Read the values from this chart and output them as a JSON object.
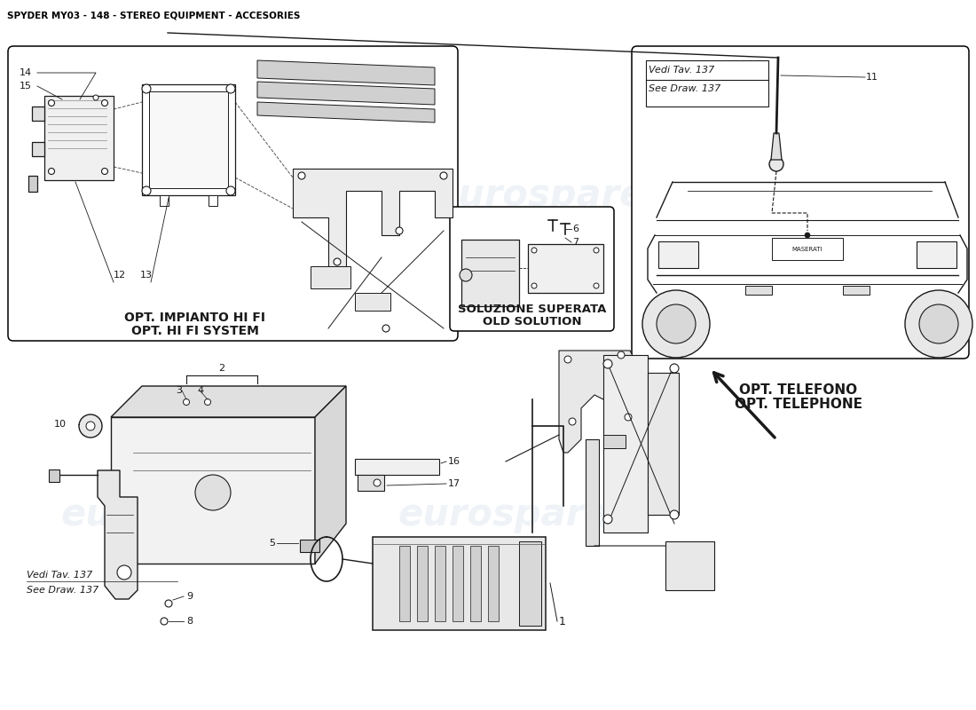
{
  "title": "SPYDER MY03 - 148 - STEREO EQUIPMENT - ACCESORIES",
  "title_fontsize": 7.5,
  "title_color": "#000000",
  "background_color": "#ffffff",
  "watermark_text": "eurospares",
  "watermark_color": "#b0c4d8",
  "box1_label_line1": "OPT. IMPIANTO HI FI",
  "box1_label_line2": "OPT. HI FI SYSTEM",
  "box2_label_line1": "SOLUZIONE SUPERATA",
  "box2_label_line2": "OLD SOLUTION",
  "box3_label_line1": "OPT. TELEFONO",
  "box3_label_line2": "OPT. TELEPHONE",
  "ref_line1": "Vedi Tav. 137",
  "ref_line2": "See Draw. 137"
}
